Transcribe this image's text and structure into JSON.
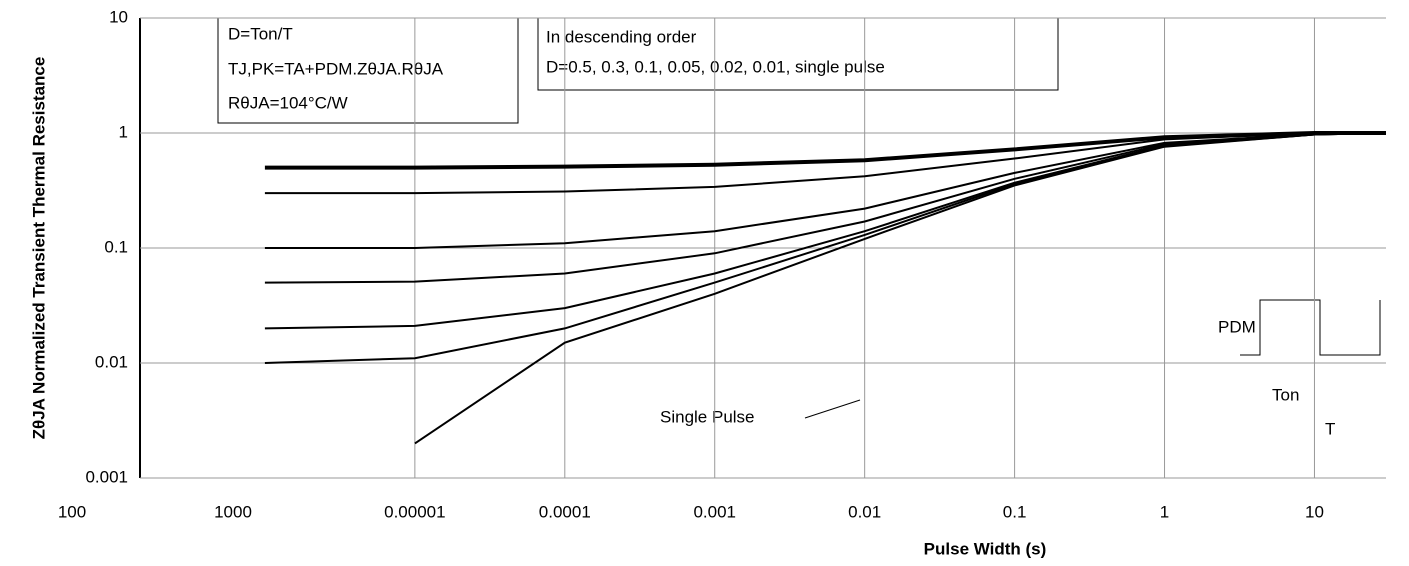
{
  "chart_data": {
    "type": "line",
    "log_x": true,
    "log_y": true,
    "grid": true,
    "y_label": "ZθJA Normalized Transient Thermal Resistance",
    "x_label": "Pulse Width (s)",
    "xlim": [
      1e-07,
      30
    ],
    "ylim": [
      0.001,
      10
    ],
    "xticks": [
      {
        "value": 1e-05,
        "label": "0.00001"
      },
      0.0001,
      0.001,
      0.01,
      0.1,
      1,
      10
    ],
    "yticks": [
      10,
      1,
      0.1,
      0.01,
      0.001
    ],
    "stray_labels": [
      "100",
      "1000"
    ],
    "notes": [
      "D=Ton/T",
      "TJ,PK=TA+PDM.ZθJA.RθJA",
      "RθJA=104°C/W"
    ],
    "order_notes": [
      "In descending order",
      "D=0.5, 0.3, 0.1, 0.05, 0.02, 0.01, single pulse"
    ],
    "single_pulse_label": "Single Pulse",
    "pulse_labels": [
      "PDM",
      "Ton",
      "T"
    ],
    "x": [
      1e-06,
      1e-05,
      0.0001,
      0.001,
      0.01,
      0.1,
      1,
      10,
      30
    ],
    "series": [
      {
        "color": "#000000",
        "values": [
          0.5,
          0.5,
          0.51,
          0.53,
          0.58,
          0.72,
          0.92,
          1.0,
          1.0
        ]
      },
      {
        "color": "#000000",
        "values": [
          0.3,
          0.3,
          0.31,
          0.34,
          0.42,
          0.6,
          0.88,
          1.0,
          1.0
        ]
      },
      {
        "color": "#000000",
        "values": [
          0.1,
          0.1,
          0.11,
          0.14,
          0.22,
          0.45,
          0.82,
          0.98,
          1.0
        ]
      },
      {
        "color": "#000000",
        "values": [
          0.05,
          0.051,
          0.06,
          0.09,
          0.17,
          0.4,
          0.8,
          0.98,
          1.0
        ]
      },
      {
        "color": "#000000",
        "values": [
          0.02,
          0.021,
          0.03,
          0.06,
          0.14,
          0.37,
          0.78,
          0.97,
          1.0
        ]
      },
      {
        "color": "#000000",
        "values": [
          0.01,
          0.011,
          0.02,
          0.05,
          0.13,
          0.36,
          0.77,
          0.97,
          1.0
        ]
      },
      {
        "color": "#000000",
        "values": [
          null,
          0.002,
          0.015,
          0.04,
          0.12,
          0.35,
          0.76,
          0.97,
          1.0
        ]
      }
    ]
  }
}
